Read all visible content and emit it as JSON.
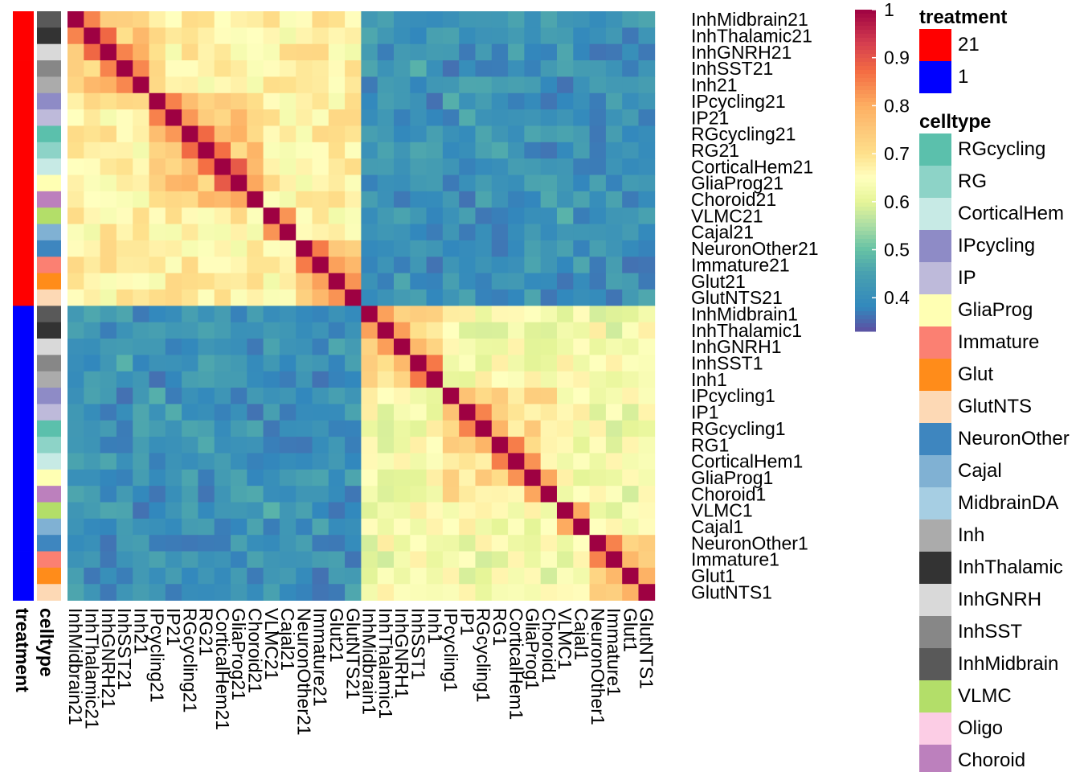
{
  "chart_data": {
    "type": "heatmap",
    "title": "",
    "labels": [
      "InhMidbrain21",
      "InhThalamic21",
      "InhGNRH21",
      "InhSST21",
      "Inh21",
      "IPcycling21",
      "IP21",
      "RGcycling21",
      "RG21",
      "CorticalHem21",
      "GliaProg21",
      "Choroid21",
      "VLMC21",
      "Cajal21",
      "NeuronOther21",
      "Immature21",
      "Glut21",
      "GlutNTS21",
      "InhMidbrain1",
      "InhThalamic1",
      "InhGNRH1",
      "InhSST1",
      "Inh1",
      "IPcycling1",
      "IP1",
      "RGcycling1",
      "RG1",
      "CorticalHem1",
      "GliaProg1",
      "Choroid1",
      "VLMC1",
      "Cajal1",
      "NeuronOther1",
      "Immature1",
      "Glut1",
      "GlutNTS1"
    ],
    "row_treatment": [
      "21",
      "21",
      "21",
      "21",
      "21",
      "21",
      "21",
      "21",
      "21",
      "21",
      "21",
      "21",
      "21",
      "21",
      "21",
      "21",
      "21",
      "21",
      "1",
      "1",
      "1",
      "1",
      "1",
      "1",
      "1",
      "1",
      "1",
      "1",
      "1",
      "1",
      "1",
      "1",
      "1",
      "1",
      "1",
      "1"
    ],
    "row_celltype": [
      "InhMidbrain",
      "InhThalamic",
      "InhGNRH",
      "InhSST",
      "Inh",
      "IPcycling",
      "IP",
      "RGcycling",
      "RG",
      "CorticalHem",
      "GliaProg",
      "Choroid",
      "VLMC",
      "Cajal",
      "NeuronOther",
      "Immature",
      "Glut",
      "GlutNTS",
      "InhMidbrain",
      "InhThalamic",
      "InhGNRH",
      "InhSST",
      "Inh",
      "IPcycling",
      "IP",
      "RGcycling",
      "RG",
      "CorticalHem",
      "GliaProg",
      "Choroid",
      "VLMC",
      "Cajal",
      "NeuronOther",
      "Immature",
      "Glut",
      "GlutNTS"
    ],
    "annotation_titles": [
      "treatment",
      "celltype"
    ],
    "colorbar": {
      "ticks": [
        "0.4",
        "0.5",
        "0.6",
        "0.7",
        "0.8",
        "0.9",
        "1"
      ],
      "min": 0.33,
      "max": 1.0
    },
    "legends": {
      "treatment": {
        "title": "treatment",
        "items": [
          {
            "label": "21",
            "color": "#FF0000"
          },
          {
            "label": "1",
            "color": "#0000FF"
          }
        ]
      },
      "celltype": {
        "title": "celltype",
        "items": [
          {
            "label": "RGcycling",
            "color": "#5BC0AC"
          },
          {
            "label": "RG",
            "color": "#8DD3C7"
          },
          {
            "label": "CorticalHem",
            "color": "#C7EAE5"
          },
          {
            "label": "IPcycling",
            "color": "#8E8BC6"
          },
          {
            "label": "IP",
            "color": "#BEBADA"
          },
          {
            "label": "GliaProg",
            "color": "#FFFFB3"
          },
          {
            "label": "Immature",
            "color": "#FB8072"
          },
          {
            "label": "Glut",
            "color": "#FF8C1A"
          },
          {
            "label": "GlutNTS",
            "color": "#FDD9B5"
          },
          {
            "label": "NeuronOther",
            "color": "#3E86BF"
          },
          {
            "label": "Cajal",
            "color": "#80B1D3"
          },
          {
            "label": "MidbrainDA",
            "color": "#A6CEE3"
          },
          {
            "label": "Inh",
            "color": "#ABABAB"
          },
          {
            "label": "InhThalamic",
            "color": "#333333"
          },
          {
            "label": "InhGNRH",
            "color": "#D9D9D9"
          },
          {
            "label": "InhSST",
            "color": "#878787"
          },
          {
            "label": "InhMidbrain",
            "color": "#595959"
          },
          {
            "label": "VLMC",
            "color": "#B3DE69"
          },
          {
            "label": "Oligo",
            "color": "#FCCDE5"
          },
          {
            "label": "Choroid",
            "color": "#BC80BD"
          }
        ]
      }
    }
  }
}
